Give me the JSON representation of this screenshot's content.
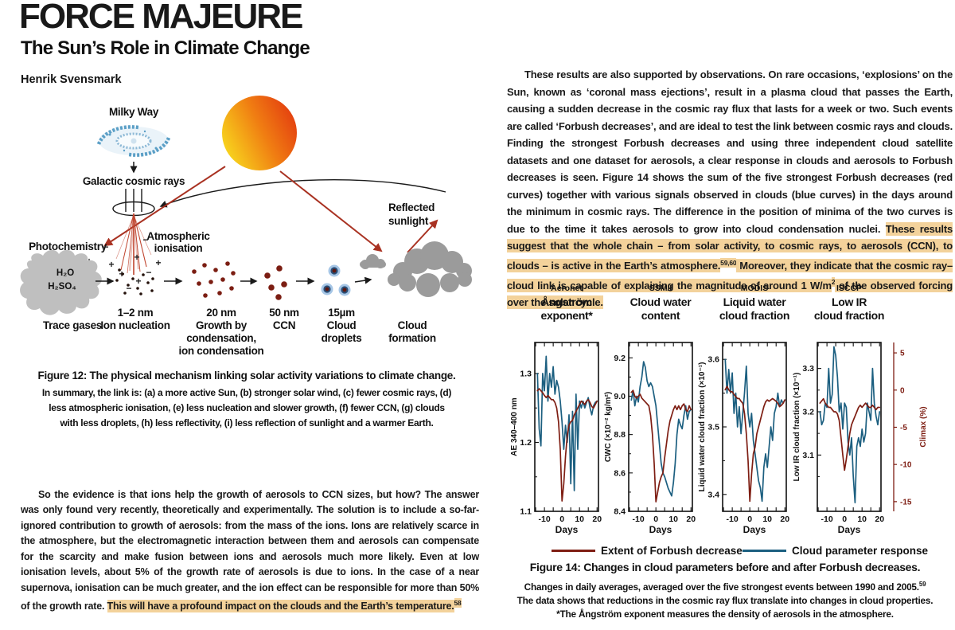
{
  "header": {
    "title": "FORCE MAJEURE",
    "subtitle": "The Sun’s Role in Climate Change",
    "author": "Henrik Svensmark"
  },
  "colors": {
    "highlight": "#f3d29b",
    "sun_yellow": "#f8da1e",
    "sun_mid": "#f07d12",
    "sun_red": "#e33d10"
  },
  "diagram": {
    "labels": {
      "milky_way": "Milky Way",
      "galactic_cosmic_rays": "Galactic cosmic rays",
      "atmospheric_1": "Atmospheric",
      "atmospheric_2": "ionisation",
      "photochemistry": "Photochemistry",
      "reflected_1": "Reflected",
      "reflected_2": "sunlight",
      "h2o": "H₂O",
      "h2so4": "H₂SO₄",
      "trace_gases": "Trace gases",
      "s1_size": "1–2 nm",
      "s1_name": "Ion nucleation",
      "s2_size": "20 nm",
      "s2_name1": "Growth by",
      "s2_name2": "condensation,",
      "s2_name3": "ion condensation",
      "s3_size": "50 nm",
      "s3_name": "CCN",
      "s4_size": "15µm",
      "s4_name1": "Cloud",
      "s4_name2": "droplets",
      "s5_name1": "Cloud",
      "s5_name2": "formation",
      "plus": "+",
      "minus": "−"
    }
  },
  "figure12_caption": {
    "title": "Figure 12: The physical mechanism linking solar activity variations to climate change.",
    "lines": [
      "In summary, the link is: (a) a more active Sun, (b) stronger solar wind, (c) fewer cosmic rays, (d)",
      "less atmospheric ionisation, (e) less nucleation and slower growth, (f) fewer CCN, (g) clouds",
      "with less droplets, (h) less reflectivity, (i) less reflection of sunlight and a warmer Earth."
    ]
  },
  "paragraphs": {
    "left": {
      "plain": "So the evidence is that ions help the growth of aerosols to CCN sizes, but how?  The answer was only found very recently, theoretically and experimentally.  The solution is to include a so-far-ignored contribution to growth of aerosols: from the mass of the ions. Ions are relatively scarce in the atmosphere, but the electromagnetic interaction between them and aerosols can compensate for the scarcity and make fusion between ions and aerosols much more likely.  Even at low ionisation levels, about 5% of the growth rate of aerosols is due to ions.  In the case of a near supernova, ionisation can be much greater, and the ion effect can be responsible for more than 50% of the growth rate. ",
      "highlight": "This will have a profound impact on the clouds and the Earth’s temperature.",
      "sup": "58"
    },
    "right": {
      "plain": "These results are also supported by observations. On rare occasions, ‘explosions’ on the Sun, known as ‘coronal mass ejections’, result in a plasma cloud that passes the Earth, causing a sudden decrease in the cosmic ray flux that lasts for a week or two. Such events are called ‘Forbush decreases’, and are ideal to test the link between cosmic rays and clouds.  Finding the strongest Forbush decreases and using three independent cloud satellite datasets and one dataset for aerosols, a clear response in clouds and aerosols to Forbush decreases is seen. Figure 14 shows the sum of the five strongest Forbush decreases (red curves) together with various signals observed in clouds (blue curves) in the days around the minimum in cosmic rays.  The difference in the position of minima of the two curves is due to the time it takes aerosols to grow into cloud condensation nuclei. ",
      "highlight1": "These results suggest that the whole chain – from solar activity, to cosmic rays, to aerosols (CCN), to clouds – is active in the Earth’s atmosphere.",
      "sup1": "59,60",
      "highlight2": " Moreover, they indicate that the cosmic ray–cloud link is capable of explaining the magnitude of around 1 W/m",
      "sup2": "2",
      "highlight3": " of the observed forcing over the solar cycle."
    }
  },
  "chart_data": {
    "type": "line",
    "figure_label": "Figure 14",
    "xlabel": "Days",
    "xlim": [
      -15.5,
      20.8
    ],
    "xticks": [
      -10,
      0,
      10,
      20
    ],
    "xtick_labels": [
      "-10",
      "0",
      "10",
      "20"
    ],
    "x": [
      -14,
      -13,
      -12,
      -11,
      -10,
      -9,
      -8,
      -7,
      -6,
      -5,
      -4,
      -3,
      -2,
      -1,
      0,
      1,
      2,
      3,
      4,
      5,
      6,
      7,
      8,
      9,
      10,
      11,
      12,
      13,
      14,
      15,
      16,
      17,
      18,
      19,
      20
    ],
    "legend": [
      {
        "name": "Extent of Forbush decrease",
        "color": "#7e1e13"
      },
      {
        "name": "Cloud parameter response",
        "color": "#1c5f80"
      }
    ],
    "charts": [
      {
        "source": "Aeronet",
        "title_lines": [
          "Ångström",
          "exponent*"
        ],
        "ylabel": "AE 340–400 nm",
        "ylim": [
          1.1,
          1.345
        ],
        "yticks": [
          1.1,
          1.2,
          1.3
        ],
        "ytick_labels": [
          "1.1",
          "1.2",
          "1.3"
        ],
        "yminor": [
          1.15,
          1.25
        ],
        "forbush": [
          1.275,
          1.278,
          1.275,
          1.272,
          1.268,
          1.265,
          1.268,
          1.265,
          1.262,
          1.262,
          1.258,
          1.25,
          1.23,
          1.19,
          1.115,
          1.14,
          1.18,
          1.21,
          1.225,
          1.23,
          1.232,
          1.24,
          1.245,
          1.25,
          1.255,
          1.26,
          1.258,
          1.255,
          1.26,
          1.262,
          1.258,
          1.252,
          1.25,
          1.255,
          1.26
        ],
        "cloud": [
          1.3,
          1.22,
          1.195,
          1.3,
          1.275,
          1.325,
          1.26,
          1.3,
          1.28,
          1.31,
          1.27,
          1.29,
          1.28,
          1.26,
          1.23,
          1.19,
          1.225,
          1.2,
          1.24,
          1.14,
          1.245,
          1.13,
          1.27,
          1.19,
          1.26,
          1.25,
          1.26,
          1.25,
          1.258,
          1.265,
          1.25,
          1.24,
          1.253,
          1.258,
          1.26
        ]
      },
      {
        "source": "SSM/I",
        "title_lines": [
          "Cloud water",
          "content"
        ],
        "ylabel": "CWC (×10⁻² kg/m²)",
        "ylim": [
          8.4,
          9.28
        ],
        "yticks": [
          8.4,
          8.6,
          8.8,
          9.0,
          9.2
        ],
        "ytick_labels": [
          "8.4",
          "8.6",
          "8.8",
          "9.0",
          "9.2"
        ],
        "yminor": [
          8.5,
          8.7,
          8.9,
          9.1
        ],
        "forbush": [
          9.02,
          9.03,
          9.0,
          8.99,
          9.0,
          9.01,
          8.99,
          8.98,
          8.97,
          8.96,
          8.95,
          8.9,
          8.8,
          8.65,
          8.45,
          8.5,
          8.55,
          8.58,
          8.6,
          8.68,
          8.75,
          8.82,
          8.87,
          8.9,
          8.93,
          8.95,
          8.93,
          8.95,
          8.93,
          8.95,
          8.96,
          8.93,
          8.92,
          8.95,
          8.93
        ],
        "cloud": [
          8.98,
          9.03,
          8.95,
          9.0,
          8.97,
          9.05,
          9.1,
          9.18,
          9.15,
          9.08,
          9.05,
          9.07,
          9.05,
          9.0,
          8.95,
          8.85,
          8.75,
          8.65,
          8.6,
          8.58,
          8.55,
          8.52,
          8.5,
          8.48,
          8.55,
          8.65,
          8.8,
          8.88,
          8.85,
          8.83,
          8.9,
          8.95,
          8.88,
          8.92,
          8.93
        ]
      },
      {
        "source": "MODIS",
        "title_lines": [
          "Liquid water",
          "cloud fraction"
        ],
        "ylabel": "Liquid water cloud fraction (×10⁻¹)",
        "ylim": [
          3.375,
          3.625
        ],
        "yticks": [
          3.4,
          3.5,
          3.6
        ],
        "ytick_labels": [
          "3.4",
          "3.5",
          "3.6"
        ],
        "yminor": [
          3.45,
          3.55
        ],
        "forbush": [
          3.555,
          3.56,
          3.555,
          3.552,
          3.552,
          3.548,
          3.545,
          3.542,
          3.542,
          3.538,
          3.535,
          3.52,
          3.49,
          3.45,
          3.39,
          3.43,
          3.46,
          3.47,
          3.49,
          3.5,
          3.51,
          3.52,
          3.53,
          3.537,
          3.54,
          3.538,
          3.54,
          3.542,
          3.54,
          3.538,
          3.535,
          3.53,
          3.532,
          3.535,
          3.54
        ],
        "cloud": [
          3.6,
          3.55,
          3.585,
          3.55,
          3.58,
          3.52,
          3.55,
          3.5,
          3.53,
          3.49,
          3.52,
          3.55,
          3.59,
          3.52,
          3.5,
          3.52,
          3.48,
          3.46,
          3.44,
          3.42,
          3.41,
          3.39,
          3.44,
          3.46,
          3.44,
          3.47,
          3.5,
          3.48,
          3.52,
          3.53,
          3.55,
          3.53,
          3.54,
          3.535,
          3.54
        ]
      },
      {
        "source": "ISCCP",
        "title_lines": [
          "Low IR",
          "cloud fraction"
        ],
        "ylabel": "Low IR cloud fraction (×10⁻¹)",
        "ylim": [
          2.97,
          3.36
        ],
        "yticks": [
          3.1,
          3.2,
          3.3
        ],
        "ytick_labels": [
          "3.1",
          "3.2",
          "3.3"
        ],
        "yminor": [
          3.05,
          3.15,
          3.25
        ],
        "right_axis": {
          "label": "Climax (%)",
          "lim": [
            -16.3,
            6.4
          ],
          "ticks": [
            5,
            0,
            -5,
            -10,
            -15
          ],
          "tick_labels": [
            "5",
            "0",
            "-5",
            "-10",
            "-15"
          ]
        },
        "forbush": [
          3.22,
          3.225,
          3.23,
          3.22,
          3.215,
          3.21,
          3.21,
          3.205,
          3.2,
          3.2,
          3.195,
          3.18,
          3.14,
          3.1,
          3.065,
          3.09,
          3.12,
          3.15,
          3.17,
          3.18,
          3.19,
          3.2,
          3.21,
          3.215,
          3.21,
          3.215,
          3.22,
          3.215,
          3.21,
          3.21,
          3.215,
          3.21,
          3.205,
          3.21,
          3.21
        ],
        "cloud": [
          3.2,
          3.17,
          3.18,
          3.22,
          3.21,
          3.3,
          3.22,
          3.24,
          3.35,
          3.33,
          3.28,
          3.2,
          3.22,
          3.16,
          3.22,
          3.21,
          3.13,
          3.1,
          3.14,
          3.05,
          2.99,
          3.12,
          3.14,
          3.12,
          3.16,
          3.13,
          3.15,
          3.22,
          3.2,
          3.18,
          3.3,
          3.22,
          3.19,
          3.17,
          3.2
        ]
      }
    ]
  },
  "figure14_caption": {
    "title": "Figure 14: Changes in cloud parameters before and after Forbush decreases.",
    "line1": "Changes in daily averages, averaged over the five strongest events between 1990 and 2005.",
    "line1_sup": "59",
    "line2": "The data shows that reductions in the cosmic ray flux translate into changes in cloud properties.",
    "line3": "*The Ångström exponent measures the density of aerosols in the atmosphere."
  }
}
